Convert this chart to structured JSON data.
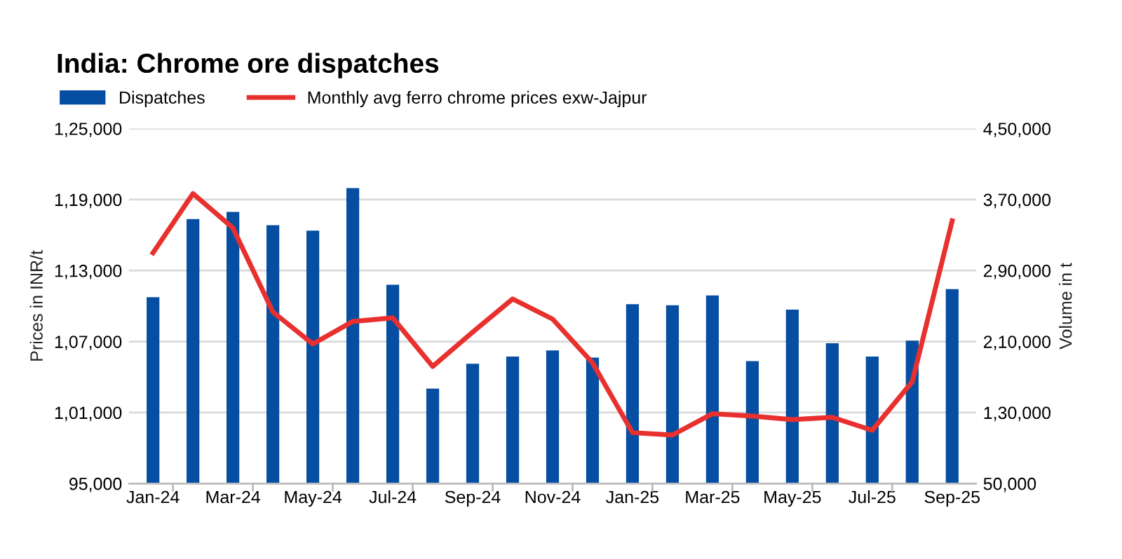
{
  "chart_data": {
    "type": "bar",
    "title": "India: Chrome ore dispatches",
    "categories": [
      "Jan-24",
      null,
      "Mar-24",
      null,
      "May-24",
      null,
      "Jul-24",
      null,
      "Sep-24",
      null,
      "Nov-24",
      null,
      "Jan-25",
      null,
      "Mar-25",
      null,
      "May-25",
      null,
      "Jul-25",
      null,
      "Sep-25"
    ],
    "series": [
      {
        "name": "Dispatches",
        "axis": "y2",
        "color": "#054ea2",
        "values": [
          260000,
          348000,
          356000,
          341000,
          335000,
          383000,
          274000,
          157000,
          185000,
          193000,
          200000,
          192000,
          252000,
          251000,
          262000,
          188000,
          246000,
          208000,
          193000,
          211000,
          269000
        ]
      },
      {
        "name": "Monthly avg ferro chrome prices exw-Jajpur",
        "type": "line",
        "color": "#e8312f",
        "values": [
          114500,
          119500,
          116600,
          109500,
          106800,
          108700,
          109000,
          104900,
          107800,
          110600,
          108900,
          105200,
          99300,
          99100,
          100900,
          100700,
          100400,
          100600,
          99500,
          103600,
          117200
        ]
      }
    ],
    "ylabel": "Prices in INR/t",
    "y2label": "Volume in t",
    "ylim": [
      95000,
      125000
    ],
    "yticks": [
      {
        "value": 95000,
        "label": "95,000"
      },
      {
        "value": 101000,
        "label": "1,01,000"
      },
      {
        "value": 107000,
        "label": "1,07,000"
      },
      {
        "value": 113000,
        "label": "1,13,000"
      },
      {
        "value": 119000,
        "label": "1,19,000"
      },
      {
        "value": 125000,
        "label": "1,25,000"
      }
    ],
    "y2lim": [
      50000,
      450000
    ],
    "y2ticks": [
      {
        "value": 50000,
        "label": "50,000"
      },
      {
        "value": 130000,
        "label": "1,30,000"
      },
      {
        "value": 210000,
        "label": "2,10,000"
      },
      {
        "value": 290000,
        "label": "2,90,000"
      },
      {
        "value": 370000,
        "label": "3,70,000"
      },
      {
        "value": 450000,
        "label": "4,50,000"
      }
    ],
    "grid": "y",
    "legend": "top left",
    "marker": "none",
    "line_style": "solid"
  }
}
